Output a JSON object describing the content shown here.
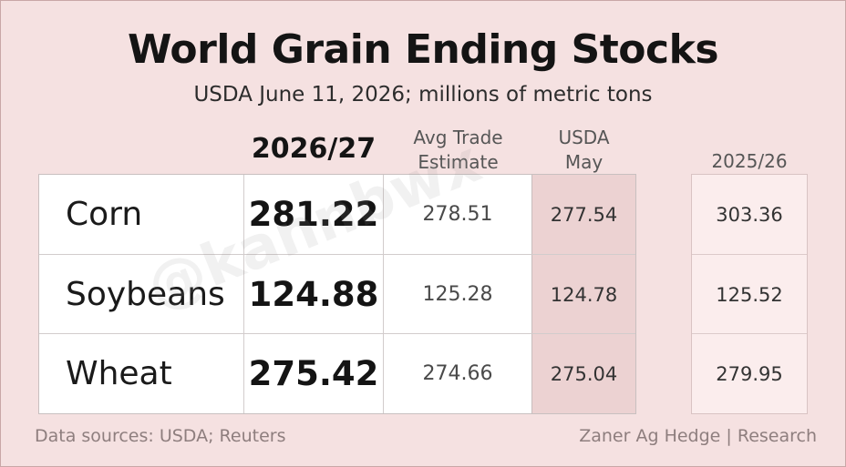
{
  "title": "World Grain Ending Stocks",
  "subtitle": "USDA June 11, 2026; millions of metric tons",
  "watermark": "@kannbwx",
  "columns": {
    "main": "2026/27",
    "avg_line1": "Avg Trade",
    "avg_line2": "Estimate",
    "may_line1": "USDA",
    "may_line2": "May",
    "prev": "2025/26"
  },
  "rows": [
    {
      "name": "Corn",
      "main": "281.22",
      "avg": "278.51",
      "may": "277.54",
      "prev": "303.36"
    },
    {
      "name": "Soybeans",
      "main": "124.88",
      "avg": "125.28",
      "may": "124.78",
      "prev": "125.52"
    },
    {
      "name": "Wheat",
      "main": "275.42",
      "avg": "274.66",
      "may": "275.04",
      "prev": "279.95"
    }
  ],
  "footer": {
    "left": "Data sources: USDA; Reuters",
    "right": "Zaner Ag Hedge | Research"
  },
  "colors": {
    "background": "#f5e1e1",
    "may_column": "#ecd2d2",
    "prev_column": "#fbeded"
  },
  "chart_data": {
    "type": "table",
    "title": "World Grain Ending Stocks",
    "subtitle": "USDA June 11, 2026; millions of metric tons",
    "columns": [
      "2026/27",
      "Avg Trade Estimate",
      "USDA May",
      "2025/26"
    ],
    "categories": [
      "Corn",
      "Soybeans",
      "Wheat"
    ],
    "series": [
      {
        "name": "2026/27",
        "values": [
          281.22,
          124.88,
          275.42
        ]
      },
      {
        "name": "Avg Trade Estimate",
        "values": [
          278.51,
          125.28,
          274.66
        ]
      },
      {
        "name": "USDA May",
        "values": [
          277.54,
          124.78,
          275.04
        ]
      },
      {
        "name": "2025/26",
        "values": [
          303.36,
          125.52,
          279.95
        ]
      }
    ]
  }
}
